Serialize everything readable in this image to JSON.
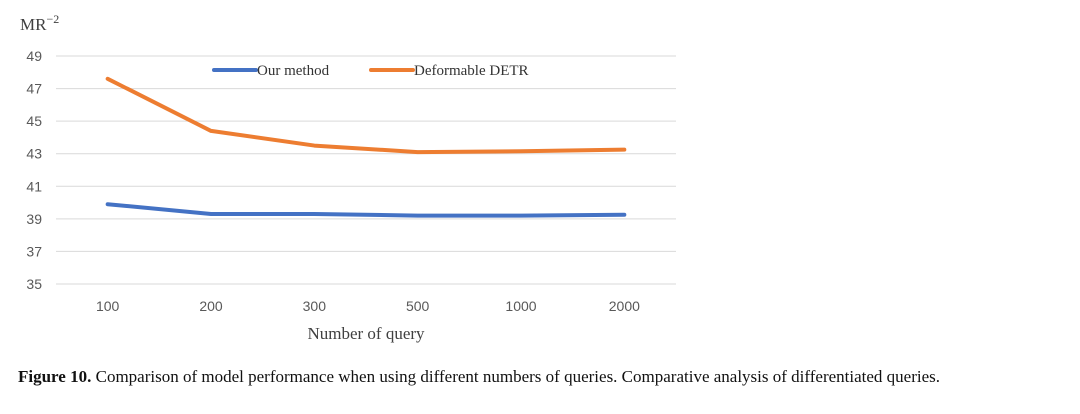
{
  "chart_data": {
    "type": "line",
    "ylabel": "MR",
    "ylabel_sup": "−2",
    "xlabel": "Number of query",
    "categories": [
      "100",
      "200",
      "300",
      "500",
      "1000",
      "2000"
    ],
    "ylim": [
      35,
      49
    ],
    "yticks": [
      "35",
      "37",
      "39",
      "41",
      "43",
      "45",
      "47",
      "49"
    ],
    "grid": true,
    "legend_position": "top",
    "series": [
      {
        "name": "Our method",
        "color": "#4472C4",
        "values": [
          39.9,
          39.3,
          39.3,
          39.2,
          39.2,
          39.25
        ]
      },
      {
        "name": "Deformable DETR",
        "color": "#ED7D31",
        "values": [
          47.6,
          44.4,
          43.5,
          43.1,
          43.15,
          43.25
        ]
      }
    ]
  },
  "caption": {
    "label": "Figure 10.",
    "text": " Comparison of model performance when using different numbers of queries. Comparative analysis of differentiated queries."
  }
}
